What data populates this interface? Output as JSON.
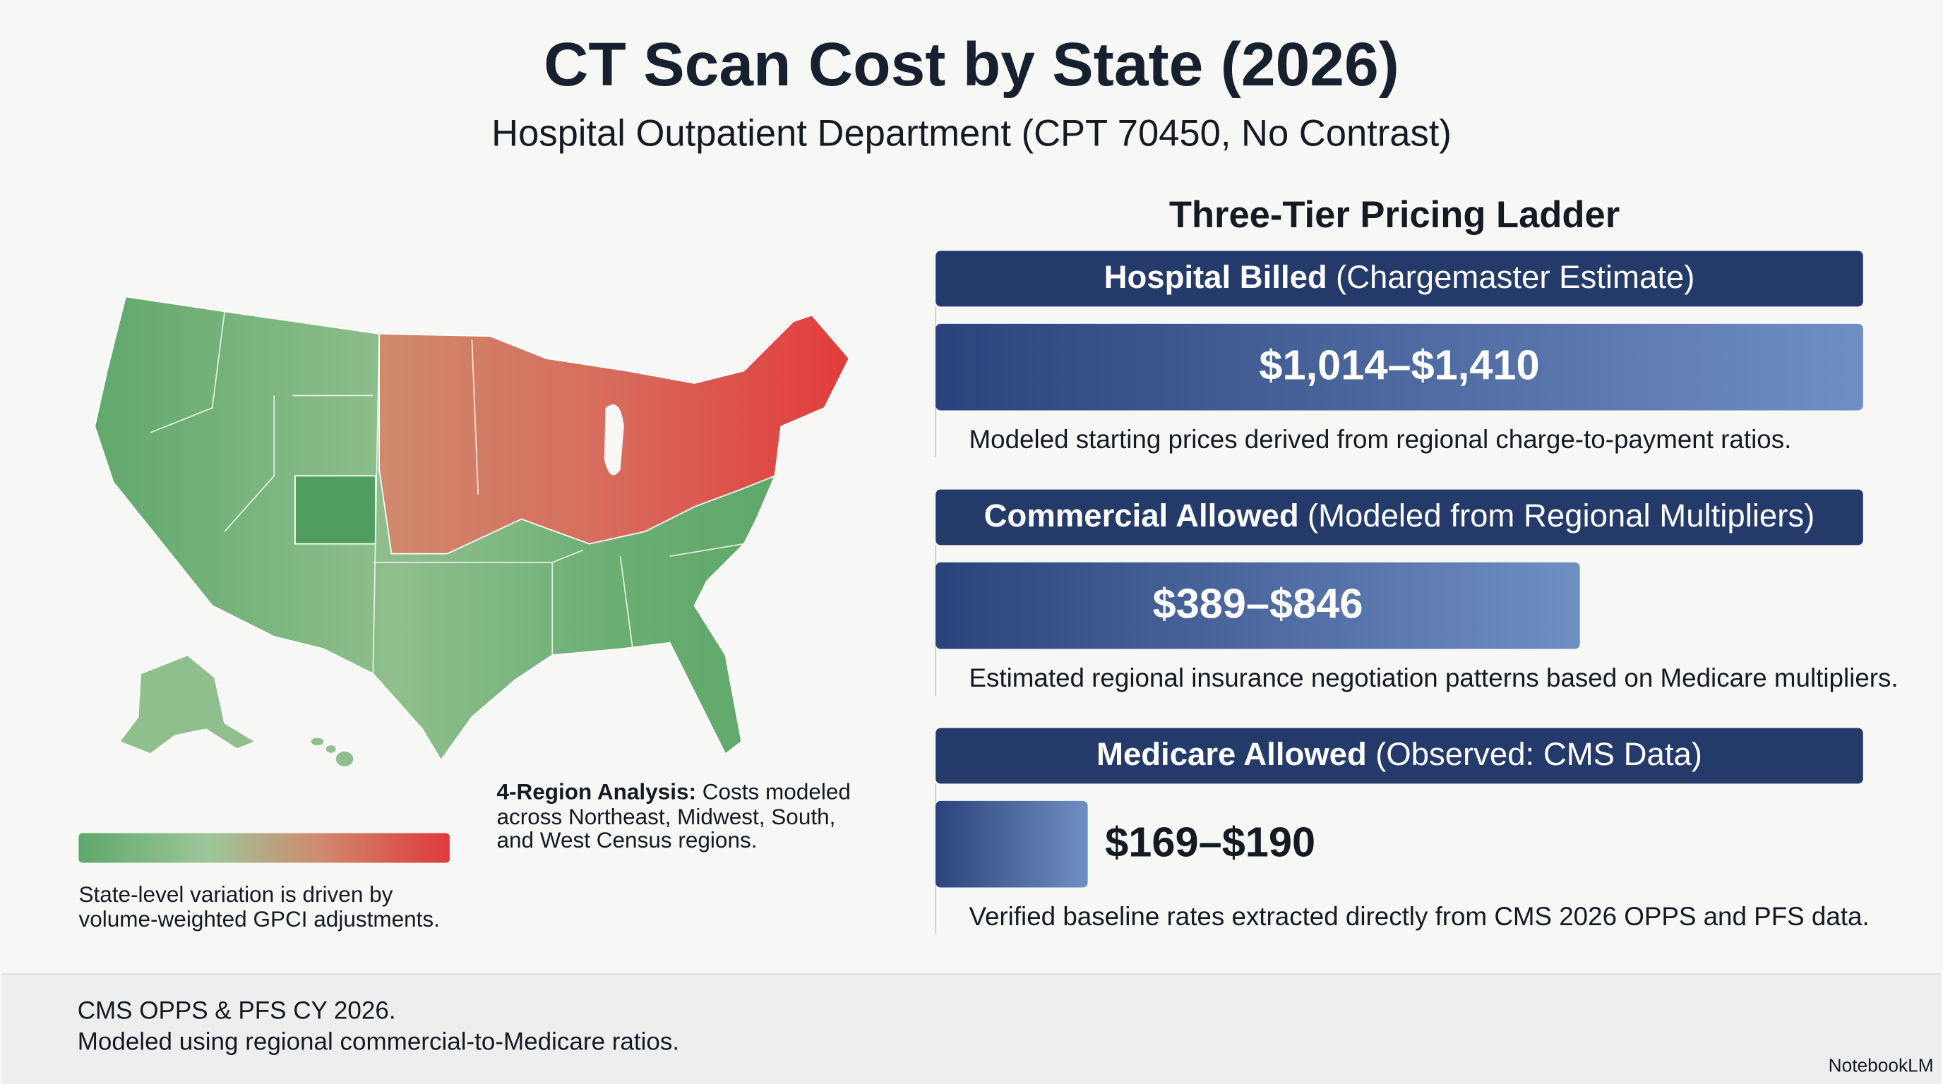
{
  "header": {
    "title": "CT Scan Cost by State (2026)",
    "subtitle": "Hospital Outpatient Department (CPT 70450, No Contrast)"
  },
  "map": {
    "legend_note": [
      "State-level variation is driven by",
      "volume-weighted GPCI adjustments."
    ],
    "region_note": {
      "label": "4-Region Analysis:",
      "lines": [
        "Costs modeled",
        "across Northeast, Midwest, South,",
        "and West Census regions."
      ]
    }
  },
  "ladder": {
    "title": "Three-Tier Pricing Ladder",
    "tiers": [
      {
        "name": "Hospital Billed",
        "qualifier": "(Chargemaster Estimate)",
        "range": "$1,014–$1,410",
        "description": "Modeled starting prices derived from regional charge-to-payment ratios."
      },
      {
        "name": "Commercial Allowed",
        "qualifier": "(Modeled from Regional Multipliers)",
        "range": "$389–$846",
        "description": "Estimated regional insurance negotiation patterns based on Medicare multipliers."
      },
      {
        "name": "Medicare Allowed",
        "qualifier": "(Observed: CMS Data)",
        "range": "$169–$190",
        "description": "Verified baseline rates extracted directly from CMS 2026 OPPS and PFS data."
      }
    ]
  },
  "footer": {
    "lines": [
      "CMS OPPS & PFS CY 2026.",
      "Modeled using regional commercial-to-Medicare ratios."
    ],
    "brand": "NotebookLM"
  }
}
